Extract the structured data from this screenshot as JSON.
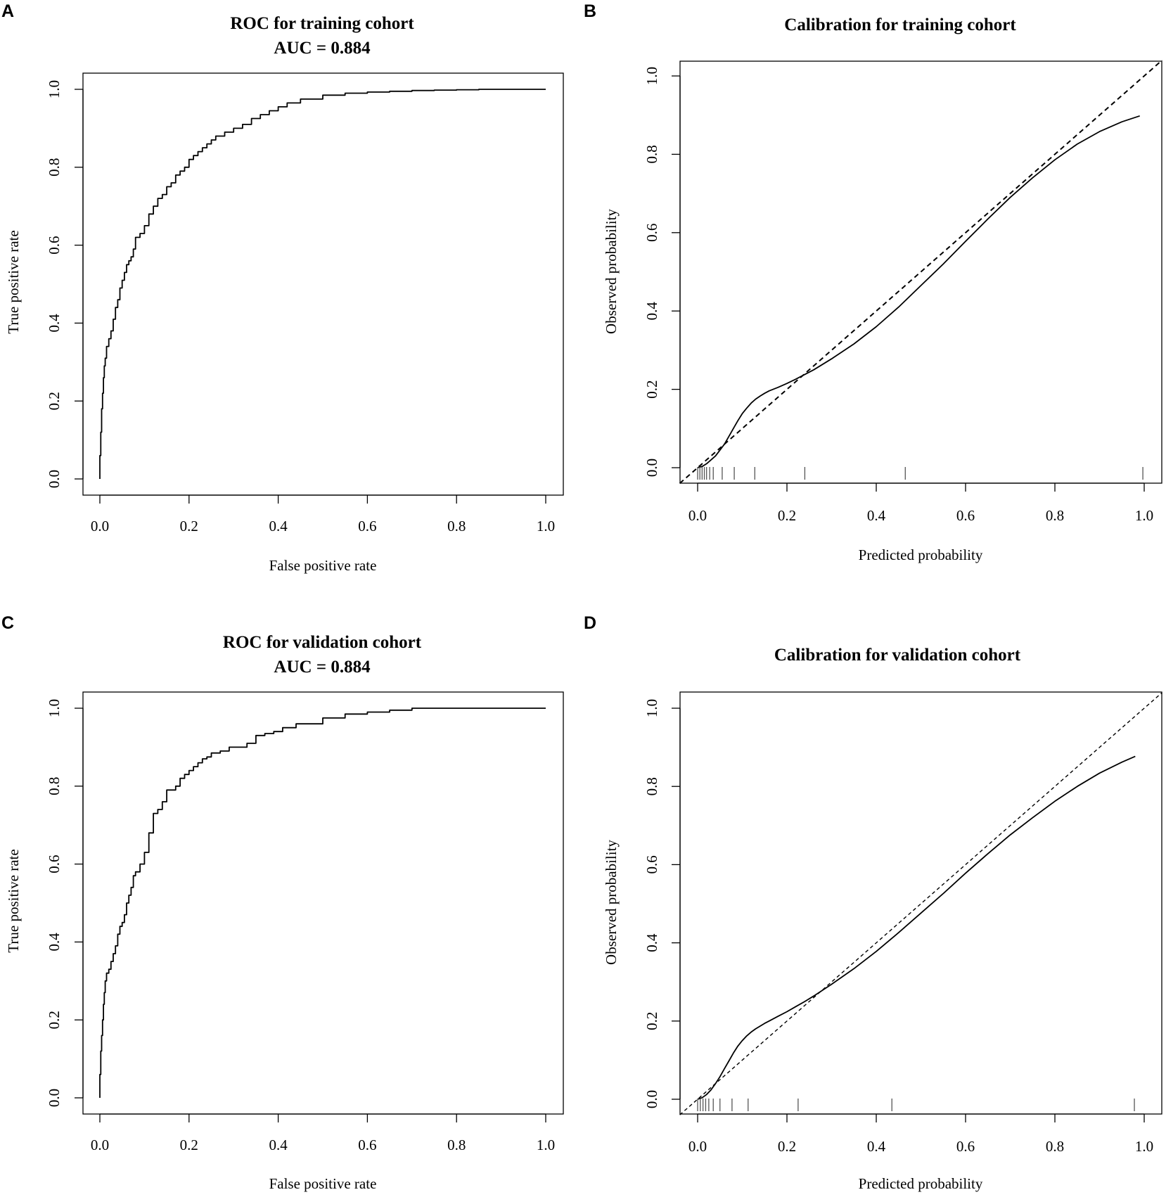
{
  "chart_data": [
    {
      "panel": "A",
      "type": "line",
      "title": "ROC for training cohort",
      "subtitle": "AUC = 0.884",
      "xlabel": "False positive rate",
      "ylabel": "True positive rate",
      "xlim": [
        0,
        1
      ],
      "ylim": [
        0,
        1
      ],
      "xticks": [
        "0.0",
        "0.2",
        "0.4",
        "0.6",
        "0.8",
        "1.0"
      ],
      "yticks": [
        "0.0",
        "0.2",
        "0.4",
        "0.6",
        "0.8",
        "1.0"
      ],
      "series": [
        {
          "name": "ROC",
          "x": [
            0,
            0.002,
            0.004,
            0.006,
            0.008,
            0.01,
            0.012,
            0.015,
            0.02,
            0.025,
            0.03,
            0.035,
            0.04,
            0.045,
            0.05,
            0.055,
            0.06,
            0.065,
            0.07,
            0.075,
            0.08,
            0.09,
            0.1,
            0.11,
            0.12,
            0.13,
            0.14,
            0.15,
            0.16,
            0.17,
            0.18,
            0.19,
            0.2,
            0.21,
            0.22,
            0.23,
            0.24,
            0.25,
            0.26,
            0.28,
            0.3,
            0.32,
            0.34,
            0.36,
            0.38,
            0.4,
            0.42,
            0.45,
            0.5,
            0.55,
            0.6,
            0.65,
            0.7,
            0.75,
            0.8,
            0.85,
            0.9,
            0.95,
            1.0
          ],
          "y": [
            0,
            0.06,
            0.12,
            0.18,
            0.22,
            0.26,
            0.29,
            0.31,
            0.34,
            0.36,
            0.38,
            0.41,
            0.44,
            0.46,
            0.49,
            0.51,
            0.53,
            0.55,
            0.56,
            0.57,
            0.59,
            0.62,
            0.63,
            0.65,
            0.68,
            0.7,
            0.72,
            0.73,
            0.75,
            0.76,
            0.78,
            0.79,
            0.8,
            0.82,
            0.83,
            0.84,
            0.85,
            0.86,
            0.87,
            0.88,
            0.89,
            0.9,
            0.91,
            0.925,
            0.935,
            0.945,
            0.955,
            0.965,
            0.975,
            0.985,
            0.99,
            0.993,
            0.995,
            0.997,
            0.998,
            0.999,
            1.0,
            1.0,
            1.0
          ]
        }
      ]
    },
    {
      "panel": "B",
      "type": "line",
      "title": "Calibration for training cohort",
      "xlabel": "Predicted probability",
      "ylabel": "Observed probability",
      "xlim": [
        -0.04,
        1.04
      ],
      "ylim": [
        -0.04,
        1.04
      ],
      "xticks": [
        "0.0",
        "0.2",
        "0.4",
        "0.6",
        "0.8",
        "1.0"
      ],
      "yticks": [
        "0.0",
        "0.2",
        "0.4",
        "0.6",
        "0.8",
        "1.0"
      ],
      "series": [
        {
          "name": "Calibration curve",
          "x": [
            0,
            0.01,
            0.02,
            0.03,
            0.04,
            0.05,
            0.06,
            0.07,
            0.08,
            0.09,
            0.1,
            0.11,
            0.12,
            0.13,
            0.14,
            0.15,
            0.16,
            0.18,
            0.2,
            0.22,
            0.24,
            0.26,
            0.3,
            0.35,
            0.4,
            0.45,
            0.5,
            0.55,
            0.6,
            0.65,
            0.7,
            0.75,
            0.8,
            0.85,
            0.9,
            0.95,
            0.99
          ],
          "y": [
            0,
            0.003,
            0.01,
            0.02,
            0.03,
            0.045,
            0.06,
            0.08,
            0.1,
            0.12,
            0.138,
            0.152,
            0.165,
            0.175,
            0.183,
            0.19,
            0.196,
            0.205,
            0.215,
            0.226,
            0.238,
            0.25,
            0.278,
            0.316,
            0.36,
            0.41,
            0.465,
            0.52,
            0.578,
            0.635,
            0.69,
            0.74,
            0.786,
            0.826,
            0.858,
            0.883,
            0.898
          ]
        },
        {
          "name": "Ideal",
          "x": [
            -0.04,
            1.04
          ],
          "y": [
            -0.04,
            1.04
          ],
          "style": "dashed"
        }
      ],
      "rug": [
        0.0,
        0.005,
        0.01,
        0.015,
        0.02,
        0.027,
        0.035,
        0.055,
        0.082,
        0.128,
        0.24,
        0.465,
        0.997
      ]
    },
    {
      "panel": "C",
      "type": "line",
      "title": "ROC for validation cohort",
      "subtitle": "AUC = 0.884",
      "xlabel": "False positive rate",
      "ylabel": "True positive rate",
      "xlim": [
        0,
        1
      ],
      "ylim": [
        0,
        1
      ],
      "xticks": [
        "0.0",
        "0.2",
        "0.4",
        "0.6",
        "0.8",
        "1.0"
      ],
      "yticks": [
        "0.0",
        "0.2",
        "0.4",
        "0.6",
        "0.8",
        "1.0"
      ],
      "series": [
        {
          "name": "ROC",
          "x": [
            0,
            0.002,
            0.004,
            0.006,
            0.008,
            0.01,
            0.012,
            0.015,
            0.02,
            0.025,
            0.03,
            0.035,
            0.04,
            0.045,
            0.05,
            0.055,
            0.06,
            0.065,
            0.07,
            0.075,
            0.08,
            0.09,
            0.1,
            0.11,
            0.12,
            0.13,
            0.14,
            0.15,
            0.16,
            0.17,
            0.18,
            0.19,
            0.2,
            0.21,
            0.22,
            0.23,
            0.24,
            0.25,
            0.27,
            0.29,
            0.31,
            0.33,
            0.35,
            0.37,
            0.39,
            0.41,
            0.44,
            0.47,
            0.5,
            0.55,
            0.6,
            0.65,
            0.7,
            0.73,
            0.8,
            0.9,
            1.0
          ],
          "y": [
            0,
            0.06,
            0.12,
            0.16,
            0.2,
            0.24,
            0.27,
            0.3,
            0.32,
            0.33,
            0.35,
            0.37,
            0.39,
            0.42,
            0.44,
            0.45,
            0.47,
            0.5,
            0.52,
            0.54,
            0.57,
            0.58,
            0.6,
            0.63,
            0.68,
            0.73,
            0.74,
            0.76,
            0.79,
            0.79,
            0.8,
            0.82,
            0.83,
            0.84,
            0.85,
            0.86,
            0.87,
            0.875,
            0.885,
            0.89,
            0.9,
            0.9,
            0.91,
            0.93,
            0.935,
            0.94,
            0.95,
            0.96,
            0.96,
            0.975,
            0.985,
            0.99,
            0.995,
            1.0,
            1.0,
            1.0,
            1.0
          ]
        }
      ]
    },
    {
      "panel": "D",
      "type": "line",
      "title": "Calibration for validation cohort",
      "xlabel": "Predicted probability",
      "ylabel": "Observed probability",
      "xlim": [
        -0.04,
        1.04
      ],
      "ylim": [
        -0.04,
        1.04
      ],
      "xticks": [
        "0.0",
        "0.2",
        "0.4",
        "0.6",
        "0.8",
        "1.0"
      ],
      "yticks": [
        "0.0",
        "0.2",
        "0.4",
        "0.6",
        "0.8",
        "1.0"
      ],
      "series": [
        {
          "name": "Calibration curve",
          "x": [
            0,
            0.01,
            0.02,
            0.03,
            0.04,
            0.05,
            0.06,
            0.07,
            0.08,
            0.09,
            0.1,
            0.11,
            0.12,
            0.13,
            0.14,
            0.15,
            0.16,
            0.18,
            0.2,
            0.22,
            0.24,
            0.26,
            0.3,
            0.35,
            0.4,
            0.45,
            0.5,
            0.55,
            0.6,
            0.65,
            0.7,
            0.75,
            0.8,
            0.85,
            0.9,
            0.95,
            0.98
          ],
          "y": [
            0,
            0.004,
            0.012,
            0.024,
            0.04,
            0.058,
            0.078,
            0.098,
            0.118,
            0.136,
            0.15,
            0.162,
            0.172,
            0.18,
            0.187,
            0.194,
            0.2,
            0.212,
            0.224,
            0.237,
            0.25,
            0.264,
            0.294,
            0.334,
            0.378,
            0.426,
            0.476,
            0.526,
            0.578,
            0.628,
            0.676,
            0.72,
            0.762,
            0.8,
            0.834,
            0.862,
            0.877
          ]
        },
        {
          "name": "Ideal",
          "x": [
            -0.04,
            1.04
          ],
          "y": [
            -0.04,
            1.04
          ],
          "style": "dashed"
        }
      ],
      "rug": [
        0.0,
        0.006,
        0.012,
        0.018,
        0.025,
        0.035,
        0.05,
        0.077,
        0.113,
        0.225,
        0.435,
        0.978
      ]
    }
  ]
}
